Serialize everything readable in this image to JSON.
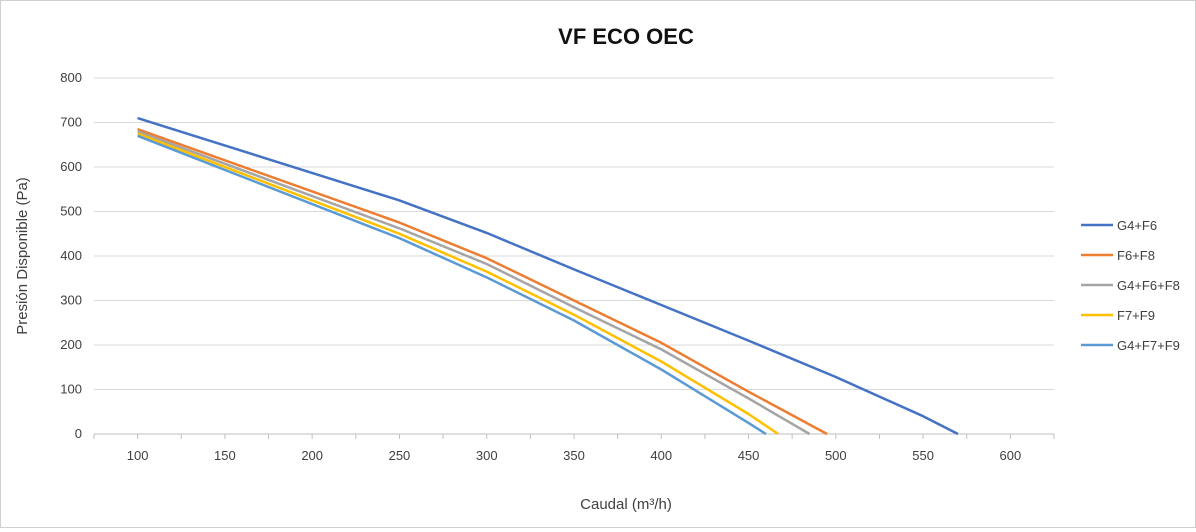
{
  "chart_data": {
    "type": "line",
    "title": "VF ECO OEC",
    "xlabel": "Caudal (m³/h)",
    "ylabel": "Presión Disponible (Pa)",
    "xlim": [
      75,
      625
    ],
    "ylim": [
      0,
      800
    ],
    "x_ticks": [
      100,
      150,
      200,
      250,
      300,
      350,
      400,
      450,
      500,
      550,
      600
    ],
    "y_ticks": [
      0,
      100,
      200,
      300,
      400,
      500,
      600,
      700,
      800
    ],
    "grid": "horizontal",
    "legend_position": "right",
    "series": [
      {
        "name": "G4+F6",
        "color": "#4472c4",
        "points": [
          [
            100,
            710
          ],
          [
            250,
            525
          ],
          [
            300,
            452
          ],
          [
            350,
            370
          ],
          [
            400,
            290
          ],
          [
            450,
            210
          ],
          [
            500,
            128
          ],
          [
            550,
            40
          ],
          [
            570,
            0
          ]
        ]
      },
      {
        "name": "F6+F8",
        "color": "#ed7d31",
        "points": [
          [
            100,
            685
          ],
          [
            250,
            475
          ],
          [
            300,
            395
          ],
          [
            350,
            300
          ],
          [
            400,
            205
          ],
          [
            450,
            95
          ],
          [
            495,
            0
          ]
        ]
      },
      {
        "name": "G4+F6+F8",
        "color": "#a5a5a5",
        "points": [
          [
            100,
            680
          ],
          [
            250,
            462
          ],
          [
            300,
            382
          ],
          [
            350,
            285
          ],
          [
            400,
            190
          ],
          [
            450,
            80
          ],
          [
            485,
            0
          ]
        ]
      },
      {
        "name": "F7+F9",
        "color": "#ffc000",
        "points": [
          [
            100,
            675
          ],
          [
            250,
            450
          ],
          [
            300,
            365
          ],
          [
            350,
            268
          ],
          [
            400,
            163
          ],
          [
            450,
            45
          ],
          [
            467,
            0
          ]
        ]
      },
      {
        "name": "G4+F7+F9",
        "color": "#5b9bd5",
        "points": [
          [
            100,
            670
          ],
          [
            250,
            440
          ],
          [
            300,
            352
          ],
          [
            350,
            255
          ],
          [
            400,
            145
          ],
          [
            450,
            25
          ],
          [
            460,
            0
          ]
        ]
      }
    ]
  }
}
